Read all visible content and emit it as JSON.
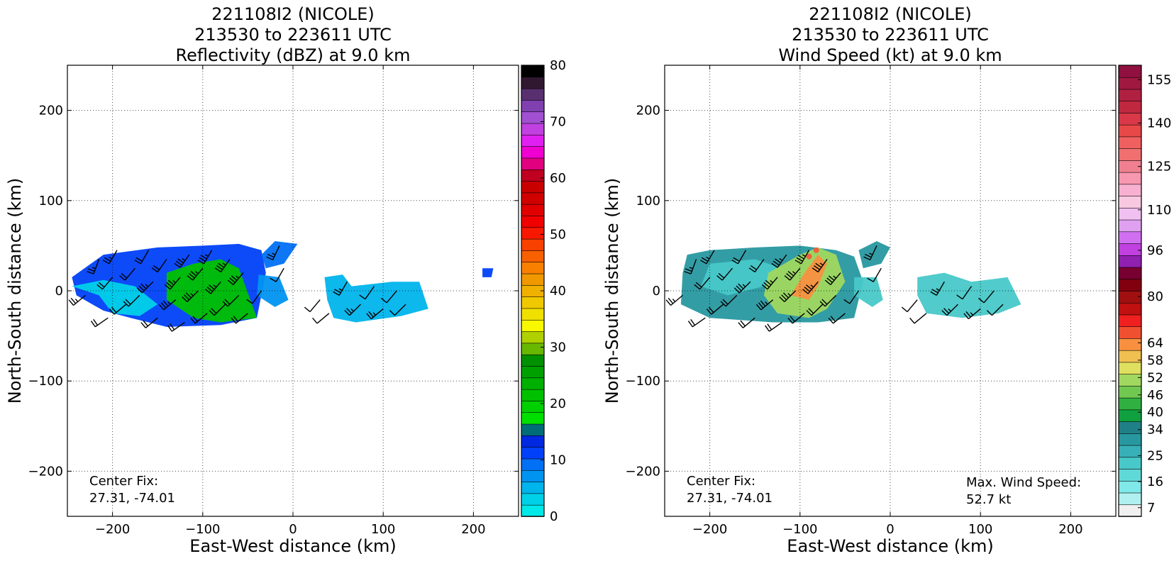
{
  "chart_data": [
    {
      "type": "heatmap",
      "title_lines": [
        "221108I2 (NICOLE)",
        "213530 to 223611 UTC",
        "Reflectivity (dBZ) at 9.0 km"
      ],
      "xlabel": "East-West distance (km)",
      "ylabel": "North-South distance (km)",
      "xlim": [
        -250,
        250
      ],
      "ylim": [
        -250,
        250
      ],
      "xticks": [
        -200,
        -100,
        0,
        100,
        200
      ],
      "yticks": [
        -200,
        -100,
        0,
        100,
        200
      ],
      "grid": true,
      "colorbar": {
        "range": [
          0,
          80
        ],
        "ticks": [
          0,
          10,
          20,
          30,
          40,
          50,
          60,
          70,
          80
        ],
        "colors": [
          "#00e8e8",
          "#00d0e8",
          "#00b4ec",
          "#0094f0",
          "#0070f4",
          "#0040f8",
          "#0028e0",
          "#006c78",
          "#00e000",
          "#00d000",
          "#00c000",
          "#00b000",
          "#00a000",
          "#009000",
          "#68b800",
          "#b0d000",
          "#f8f800",
          "#f0e000",
          "#f0c800",
          "#f0b000",
          "#f09800",
          "#f88000",
          "#f86000",
          "#f84000",
          "#f81800",
          "#f00000",
          "#e00000",
          "#d00000",
          "#c80000",
          "#c00020",
          "#e00080",
          "#f000d0",
          "#e020f0",
          "#c040e0",
          "#a050d0",
          "#8040b0",
          "#583070",
          "#301830",
          "#000000"
        ]
      },
      "annotations": [
        "Center Fix:",
        "27.31, -74.01"
      ],
      "echo_regions": [
        {
          "level": 5,
          "points": [
            [
              -245,
              15
            ],
            [
              -210,
              40
            ],
            [
              -150,
              48
            ],
            [
              -100,
              50
            ],
            [
              -60,
              52
            ],
            [
              -35,
              45
            ],
            [
              -30,
              20
            ],
            [
              -40,
              -30
            ],
            [
              -80,
              -38
            ],
            [
              -140,
              -40
            ],
            [
              -180,
              -30
            ],
            [
              -210,
              -22
            ],
            [
              -240,
              -5
            ]
          ]
        },
        {
          "level": 1,
          "points": [
            [
              -245,
              5
            ],
            [
              -215,
              -5
            ],
            [
              -200,
              -25
            ],
            [
              -170,
              -28
            ],
            [
              -150,
              -15
            ],
            [
              -175,
              5
            ],
            [
              -210,
              12
            ]
          ]
        },
        {
          "level": 10,
          "points": [
            [
              -140,
              20
            ],
            [
              -110,
              30
            ],
            [
              -80,
              35
            ],
            [
              -60,
              25
            ],
            [
              -40,
              -30
            ],
            [
              -80,
              -35
            ],
            [
              -110,
              -30
            ],
            [
              -140,
              -10
            ]
          ]
        },
        {
          "level": 4,
          "points": [
            [
              -35,
              40
            ],
            [
              -20,
              55
            ],
            [
              5,
              52
            ],
            [
              -10,
              30
            ],
            [
              -30,
              25
            ]
          ]
        },
        {
          "level": 3,
          "points": [
            [
              -38,
              18
            ],
            [
              -15,
              15
            ],
            [
              -5,
              -10
            ],
            [
              -20,
              -18
            ],
            [
              -40,
              -5
            ]
          ]
        },
        {
          "level": 2,
          "points": [
            [
              35,
              15
            ],
            [
              55,
              18
            ],
            [
              65,
              5
            ],
            [
              110,
              10
            ],
            [
              140,
              10
            ],
            [
              150,
              -20
            ],
            [
              120,
              -28
            ],
            [
              70,
              -35
            ],
            [
              45,
              -30
            ],
            [
              38,
              -10
            ]
          ]
        },
        {
          "level": 5,
          "points": [
            [
              210,
              25
            ],
            [
              222,
              25
            ],
            [
              220,
              15
            ],
            [
              210,
              15
            ]
          ]
        }
      ],
      "barbs": [
        [
          -230,
          -5,
          230,
          15
        ],
        [
          -215,
          35,
          200,
          15
        ],
        [
          -205,
          -30,
          235,
          20
        ],
        [
          -200,
          15,
          220,
          20
        ],
        [
          -195,
          45,
          210,
          15
        ],
        [
          -185,
          -15,
          230,
          20
        ],
        [
          -175,
          25,
          220,
          20
        ],
        [
          -170,
          -5,
          225,
          20
        ],
        [
          -160,
          45,
          210,
          20
        ],
        [
          -155,
          10,
          225,
          25
        ],
        [
          -150,
          -30,
          230,
          20
        ],
        [
          -140,
          35,
          215,
          20
        ],
        [
          -130,
          -10,
          230,
          25
        ],
        [
          -125,
          15,
          220,
          25
        ],
        [
          -120,
          -35,
          235,
          20
        ],
        [
          -115,
          40,
          215,
          25
        ],
        [
          -105,
          0,
          225,
          25
        ],
        [
          -100,
          25,
          220,
          25
        ],
        [
          -95,
          -25,
          230,
          20
        ],
        [
          -90,
          45,
          210,
          25
        ],
        [
          -80,
          10,
          220,
          25
        ],
        [
          -75,
          -15,
          225,
          20
        ],
        [
          -70,
          35,
          215,
          25
        ],
        [
          -60,
          -5,
          225,
          20
        ],
        [
          -55,
          20,
          220,
          25
        ],
        [
          -50,
          -25,
          230,
          20
        ],
        [
          -15,
          50,
          205,
          15
        ],
        [
          -10,
          25,
          210,
          10
        ],
        [
          -35,
          0,
          215,
          10
        ],
        [
          30,
          -10,
          220,
          10
        ],
        [
          40,
          -25,
          230,
          10
        ],
        [
          60,
          10,
          210,
          15
        ],
        [
          75,
          -15,
          225,
          15
        ],
        [
          90,
          5,
          215,
          10
        ],
        [
          100,
          -20,
          230,
          15
        ],
        [
          115,
          0,
          220,
          10
        ],
        [
          125,
          -15,
          225,
          10
        ]
      ]
    },
    {
      "type": "heatmap",
      "title_lines": [
        "221108I2 (NICOLE)",
        "213530 to 223611 UTC",
        "Wind Speed (kt) at 9.0 km"
      ],
      "xlabel": "East-West distance (km)",
      "ylabel": "North-South distance (km)",
      "xlim": [
        -250,
        250
      ],
      "ylim": [
        -250,
        250
      ],
      "xticks": [
        -200,
        -100,
        0,
        100,
        200
      ],
      "yticks": [
        -200,
        -100,
        0,
        100,
        200
      ],
      "grid": true,
      "colorbar": {
        "range": [
          4,
          160
        ],
        "ticks": [
          7,
          16,
          25,
          34,
          40,
          46,
          52,
          58,
          64,
          80,
          96,
          110,
          125,
          140,
          155
        ],
        "colors": [
          "#f0f0f0",
          "#b0f0f0",
          "#80e8e8",
          "#60d8d8",
          "#48c8c8",
          "#38b0b8",
          "#2898a0",
          "#208088",
          "#10a040",
          "#30b040",
          "#70c850",
          "#a0d860",
          "#e0e060",
          "#f0c050",
          "#f89040",
          "#f05030",
          "#f02020",
          "#c01010",
          "#a01010",
          "#800010",
          "#780030",
          "#9020b0",
          "#c040e0",
          "#d070f0",
          "#e0a0f0",
          "#f0c0f0",
          "#f8c8e0",
          "#f8b0d0",
          "#f898b0",
          "#f08090",
          "#f07070",
          "#f06060",
          "#e84848",
          "#d83848",
          "#c02840",
          "#b02040",
          "#a01840",
          "#901040"
        ]
      },
      "annotations": [
        "Center Fix:",
        "27.31, -74.01",
        "Max. Wind Speed:",
        "52.7 kt"
      ],
      "echo_regions": [
        {
          "level": 6,
          "points": [
            [
              -225,
              40
            ],
            [
              -200,
              45
            ],
            [
              -150,
              48
            ],
            [
              -100,
              50
            ],
            [
              -60,
              45
            ],
            [
              -40,
              38
            ],
            [
              -30,
              10
            ],
            [
              -40,
              -30
            ],
            [
              -80,
              -35
            ],
            [
              -130,
              -35
            ],
            [
              -200,
              -30
            ],
            [
              -232,
              -15
            ],
            [
              -230,
              20
            ]
          ]
        },
        {
          "level": 4,
          "points": [
            [
              -200,
              30
            ],
            [
              -150,
              35
            ],
            [
              -120,
              25
            ],
            [
              -140,
              5
            ],
            [
              -180,
              -5
            ],
            [
              -210,
              5
            ]
          ]
        },
        {
          "level": 11,
          "points": [
            [
              -135,
              20
            ],
            [
              -100,
              40
            ],
            [
              -80,
              48
            ],
            [
              -60,
              40
            ],
            [
              -50,
              10
            ],
            [
              -70,
              -20
            ],
            [
              -90,
              -30
            ],
            [
              -125,
              -25
            ],
            [
              -140,
              -5
            ]
          ]
        },
        {
          "level": 14,
          "points": [
            [
              -95,
              20
            ],
            [
              -80,
              40
            ],
            [
              -70,
              30
            ],
            [
              -80,
              5
            ],
            [
              -90,
              -10
            ],
            [
              -110,
              -5
            ]
          ]
        },
        {
          "level": 6,
          "points": [
            [
              -35,
              45
            ],
            [
              -15,
              55
            ],
            [
              0,
              48
            ],
            [
              -10,
              30
            ],
            [
              -30,
              25
            ]
          ]
        },
        {
          "level": 4,
          "points": [
            [
              -40,
              15
            ],
            [
              -15,
              15
            ],
            [
              -8,
              -10
            ],
            [
              -20,
              -18
            ],
            [
              -40,
              -5
            ]
          ]
        },
        {
          "level": 4,
          "points": [
            [
              30,
              15
            ],
            [
              60,
              20
            ],
            [
              90,
              10
            ],
            [
              130,
              15
            ],
            [
              145,
              -15
            ],
            [
              120,
              -25
            ],
            [
              80,
              -30
            ],
            [
              40,
              -25
            ],
            [
              30,
              -5
            ]
          ]
        }
      ],
      "hot_spots": [
        [
          -82,
          45
        ],
        [
          -90,
          38
        ]
      ],
      "barbs": [
        [
          -230,
          -5,
          230,
          15
        ],
        [
          -215,
          35,
          200,
          15
        ],
        [
          -205,
          -30,
          235,
          20
        ],
        [
          -200,
          15,
          220,
          20
        ],
        [
          -195,
          45,
          210,
          15
        ],
        [
          -185,
          -15,
          230,
          20
        ],
        [
          -175,
          25,
          220,
          20
        ],
        [
          -170,
          -5,
          225,
          20
        ],
        [
          -160,
          45,
          210,
          20
        ],
        [
          -155,
          10,
          225,
          25
        ],
        [
          -150,
          -30,
          230,
          20
        ],
        [
          -140,
          35,
          215,
          20
        ],
        [
          -130,
          -10,
          230,
          25
        ],
        [
          -125,
          15,
          220,
          25
        ],
        [
          -120,
          -35,
          235,
          20
        ],
        [
          -115,
          40,
          215,
          25
        ],
        [
          -105,
          0,
          225,
          25
        ],
        [
          -100,
          25,
          220,
          25
        ],
        [
          -95,
          -25,
          230,
          20
        ],
        [
          -90,
          45,
          210,
          25
        ],
        [
          -80,
          10,
          220,
          25
        ],
        [
          -75,
          -15,
          225,
          20
        ],
        [
          -70,
          35,
          215,
          25
        ],
        [
          -60,
          -5,
          225,
          20
        ],
        [
          -55,
          20,
          220,
          25
        ],
        [
          -50,
          -25,
          230,
          20
        ],
        [
          -15,
          50,
          205,
          15
        ],
        [
          -10,
          25,
          210,
          10
        ],
        [
          -35,
          0,
          215,
          10
        ],
        [
          30,
          -10,
          220,
          10
        ],
        [
          40,
          -25,
          230,
          10
        ],
        [
          60,
          10,
          210,
          15
        ],
        [
          75,
          -15,
          225,
          15
        ],
        [
          90,
          5,
          215,
          10
        ],
        [
          100,
          -20,
          230,
          15
        ],
        [
          115,
          0,
          220,
          10
        ],
        [
          125,
          -15,
          225,
          10
        ]
      ]
    }
  ]
}
